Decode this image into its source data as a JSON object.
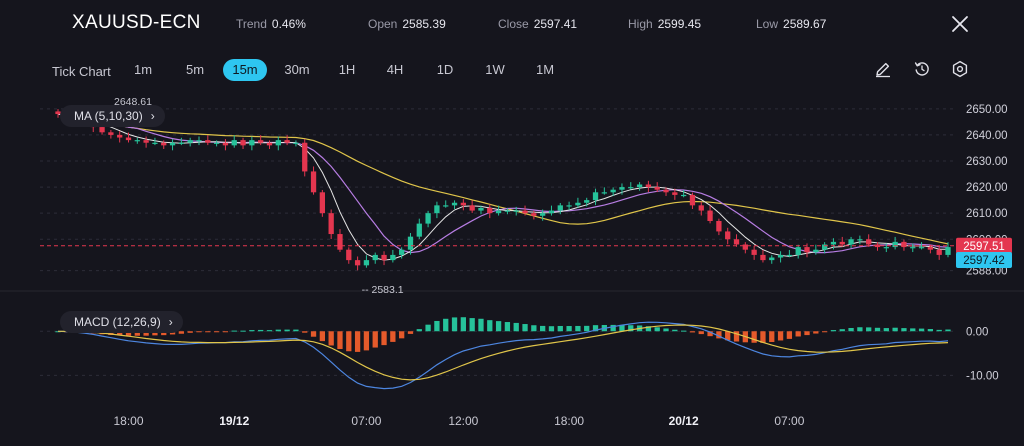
{
  "header": {
    "symbol": "XAUUSD-ECN",
    "trend_label": "Trend",
    "trend_value": "0.46%",
    "open_label": "Open",
    "open_value": "2585.39",
    "close_label": "Close",
    "close_value": "2597.41",
    "high_label": "High",
    "high_value": "2599.45",
    "low_label": "Low",
    "low_value": "2589.67"
  },
  "toolbar": {
    "tick_chart": "Tick Chart",
    "timeframes": [
      "1m",
      "5m",
      "15m",
      "30m",
      "1H",
      "4H",
      "1D",
      "1W",
      "1M"
    ],
    "active_timeframe": "15m",
    "icons": [
      "pencil-icon",
      "reset-icon",
      "settings-icon"
    ]
  },
  "indicators": {
    "ma_label": "MA (5,10,30)",
    "macd_label": "MACD (12,26,9)"
  },
  "colors": {
    "background": "#15151d",
    "up": "#26c29a",
    "down": "#e4364f",
    "ma5": "#e6e6e6",
    "ma10": "#b77de3",
    "ma30": "#e0c54a",
    "macd_line": "#4d86e0",
    "signal_line": "#e0c54a",
    "hist_pos": "#26c29a",
    "hist_neg": "#e55a2b",
    "accent": "#2ec6f0"
  },
  "chart_data": [
    {
      "type": "candlestick",
      "y_ticks": [
        2588,
        2600,
        2610,
        2620,
        2630,
        2640,
        2650
      ],
      "y_tick_labels": [
        "2588.00",
        "2600.00",
        "2610.00",
        "2620.00",
        "2630.00",
        "2640.00",
        "2650.00"
      ],
      "ylim": [
        2584,
        2653
      ],
      "x_tick_labels": [
        "18:00",
        "19/12",
        "07:00",
        "12:00",
        "18:00",
        "20/12",
        "07:00"
      ],
      "x_tick_bold": [
        false,
        true,
        false,
        false,
        false,
        true,
        false
      ],
      "x_tick_index": [
        8,
        20,
        35,
        46,
        58,
        71,
        83
      ],
      "series_ma": [
        "MA5",
        "MA10",
        "MA30"
      ],
      "max_label": "2648.61",
      "min_label": "2583.1",
      "min_index": 34,
      "bid_price": "2597.51",
      "ask_price": "2597.42",
      "bid_value": 2597.51,
      "ask_value": 2597.42,
      "close_values": [
        2648,
        2647,
        2646,
        2645,
        2643,
        2641,
        2640,
        2639,
        2638,
        2638,
        2637,
        2637,
        2636,
        2637,
        2637,
        2638,
        2638,
        2637,
        2637,
        2636,
        2638,
        2636,
        2638,
        2637,
        2636,
        2638,
        2637,
        2637,
        2626,
        2618,
        2610,
        2602,
        2596,
        2592,
        2590,
        2592,
        2594,
        2592,
        2594,
        2596,
        2601,
        2606,
        2610,
        2613,
        2613,
        2614,
        2613,
        2611,
        2612,
        2610,
        2611,
        2611,
        2611,
        2610,
        2609,
        2610,
        2611,
        2613,
        2613,
        2614,
        2615,
        2618,
        2618,
        2619,
        2620,
        2620,
        2621,
        2620,
        2619,
        2618,
        2617,
        2617,
        2613,
        2611,
        2607,
        2603,
        2600,
        2598,
        2596,
        2594,
        2592,
        2593,
        2594,
        2594,
        2597,
        2595,
        2596,
        2598,
        2599,
        2598,
        2600,
        2600,
        2598,
        2597,
        2597,
        2599,
        2597,
        2597,
        2597,
        2596,
        2594,
        2597
      ]
    },
    {
      "type": "bar",
      "name": "MACD",
      "y_ticks": [
        0,
        -10
      ],
      "y_tick_labels": [
        "0.00",
        "-10.00"
      ],
      "ylim": [
        -14,
        5.5
      ]
    }
  ]
}
